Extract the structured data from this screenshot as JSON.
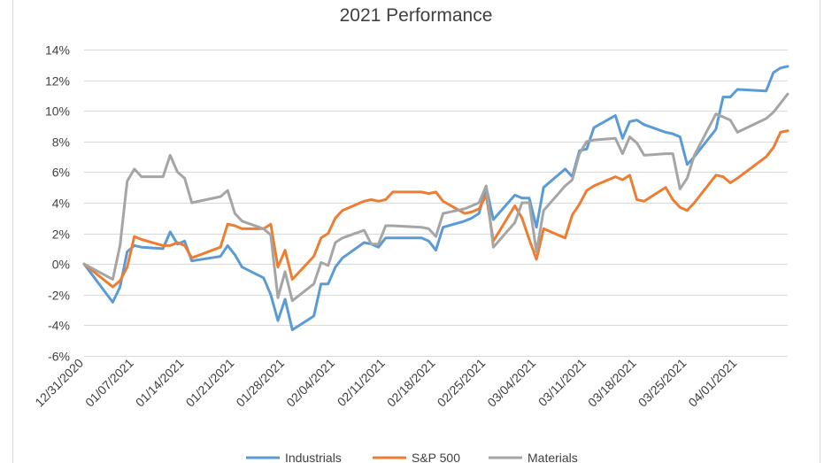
{
  "chart_data": {
    "type": "line",
    "title": "2021 Performance",
    "xlabel": "",
    "ylabel": "",
    "ylim": [
      -0.06,
      0.14
    ],
    "y_ticks": [
      -0.06,
      -0.04,
      -0.02,
      0,
      0.02,
      0.04,
      0.06,
      0.08,
      0.1,
      0.12,
      0.14
    ],
    "y_tick_labels": [
      "-6%",
      "-4%",
      "-2%",
      "0%",
      "2%",
      "4%",
      "6%",
      "8%",
      "10%",
      "12%",
      "14%"
    ],
    "y_format": "percent",
    "x_tick_labels": [
      "12/31/2020",
      "01/07/2021",
      "01/14/2021",
      "01/21/2021",
      "01/28/2021",
      "02/04/2021",
      "02/11/2021",
      "02/18/2021",
      "02/25/2021",
      "03/04/2021",
      "03/11/2021",
      "03/18/2021",
      "03/25/2021",
      "04/01/2021"
    ],
    "x_ticks": [
      "2020-12-31",
      "2021-01-07",
      "2021-01-14",
      "2021-01-21",
      "2021-01-28",
      "2021-02-04",
      "2021-02-11",
      "2021-02-18",
      "2021-02-25",
      "2021-03-04",
      "2021-03-11",
      "2021-03-18",
      "2021-03-25",
      "2021-04-01"
    ],
    "xlim": [
      "2020-12-31",
      "2021-04-08"
    ],
    "grid": "horizontal",
    "legend_position": "bottom",
    "x": [
      "2020-12-31",
      "2021-01-04",
      "2021-01-05",
      "2021-01-06",
      "2021-01-07",
      "2021-01-08",
      "2021-01-11",
      "2021-01-12",
      "2021-01-13",
      "2021-01-14",
      "2021-01-15",
      "2021-01-19",
      "2021-01-20",
      "2021-01-21",
      "2021-01-22",
      "2021-01-25",
      "2021-01-26",
      "2021-01-27",
      "2021-01-28",
      "2021-01-29",
      "2021-02-01",
      "2021-02-02",
      "2021-02-03",
      "2021-02-04",
      "2021-02-05",
      "2021-02-08",
      "2021-02-09",
      "2021-02-10",
      "2021-02-11",
      "2021-02-12",
      "2021-02-16",
      "2021-02-17",
      "2021-02-18",
      "2021-02-19",
      "2021-02-22",
      "2021-02-23",
      "2021-02-24",
      "2021-02-25",
      "2021-02-26",
      "2021-03-01",
      "2021-03-02",
      "2021-03-03",
      "2021-03-04",
      "2021-03-05",
      "2021-03-08",
      "2021-03-09",
      "2021-03-10",
      "2021-03-11",
      "2021-03-12",
      "2021-03-15",
      "2021-03-16",
      "2021-03-17",
      "2021-03-18",
      "2021-03-19",
      "2021-03-22",
      "2021-03-23",
      "2021-03-24",
      "2021-03-25",
      "2021-03-26",
      "2021-03-29",
      "2021-03-30",
      "2021-03-31",
      "2021-04-01",
      "2021-04-05",
      "2021-04-06",
      "2021-04-07",
      "2021-04-08"
    ],
    "series": [
      {
        "name": "Industrials",
        "color": "#5B9BD5",
        "values": [
          0.0,
          -0.025,
          -0.015,
          0.008,
          0.012,
          0.011,
          0.01,
          0.021,
          0.013,
          0.015,
          0.002,
          0.005,
          0.012,
          0.006,
          -0.002,
          -0.009,
          -0.02,
          -0.037,
          -0.023,
          -0.043,
          -0.034,
          -0.013,
          -0.013,
          -0.002,
          0.004,
          0.014,
          0.013,
          0.011,
          0.017,
          0.017,
          0.017,
          0.015,
          0.009,
          0.024,
          0.028,
          0.03,
          0.033,
          0.05,
          0.029,
          0.045,
          0.043,
          0.043,
          0.024,
          0.05,
          0.062,
          0.057,
          0.074,
          0.075,
          0.089,
          0.097,
          0.082,
          0.093,
          0.094,
          0.091,
          0.086,
          0.085,
          0.083,
          0.065,
          0.07,
          0.088,
          0.109,
          0.109,
          0.114,
          0.113,
          0.125,
          0.128,
          0.129
        ]
      },
      {
        "name": "S&P 500",
        "color": "#ED7D31",
        "values": [
          0.0,
          -0.015,
          -0.011,
          -0.002,
          0.018,
          0.016,
          0.012,
          0.012,
          0.014,
          0.012,
          0.004,
          0.011,
          0.026,
          0.025,
          0.023,
          0.023,
          0.026,
          -0.002,
          0.009,
          -0.01,
          0.005,
          0.017,
          0.02,
          0.03,
          0.035,
          0.041,
          0.042,
          0.041,
          0.042,
          0.047,
          0.047,
          0.046,
          0.047,
          0.041,
          0.033,
          0.034,
          0.036,
          0.045,
          0.015,
          0.038,
          0.03,
          0.016,
          0.003,
          0.023,
          0.017,
          0.032,
          0.039,
          0.048,
          0.051,
          0.057,
          0.055,
          0.058,
          0.042,
          0.041,
          0.05,
          0.042,
          0.037,
          0.035,
          0.04,
          0.058,
          0.057,
          0.053,
          0.056,
          0.07,
          0.076,
          0.086,
          0.087
        ]
      },
      {
        "name": "Materials",
        "color": "#A5A5A5",
        "values": [
          0.0,
          -0.01,
          0.012,
          0.054,
          0.062,
          0.057,
          0.057,
          0.071,
          0.06,
          0.056,
          0.04,
          0.044,
          0.048,
          0.033,
          0.028,
          0.023,
          0.019,
          -0.022,
          -0.005,
          -0.024,
          -0.013,
          0.001,
          -0.001,
          0.014,
          0.017,
          0.022,
          0.013,
          0.013,
          0.025,
          0.025,
          0.024,
          0.023,
          0.018,
          0.033,
          0.036,
          0.038,
          0.04,
          0.051,
          0.011,
          0.027,
          0.04,
          0.04,
          0.008,
          0.035,
          0.051,
          0.055,
          0.072,
          0.08,
          0.081,
          0.082,
          0.072,
          0.083,
          0.079,
          0.071,
          0.072,
          0.072,
          0.049,
          0.056,
          0.071,
          0.098,
          0.096,
          0.094,
          0.086,
          0.095,
          0.099,
          0.105,
          0.111
        ]
      }
    ]
  }
}
